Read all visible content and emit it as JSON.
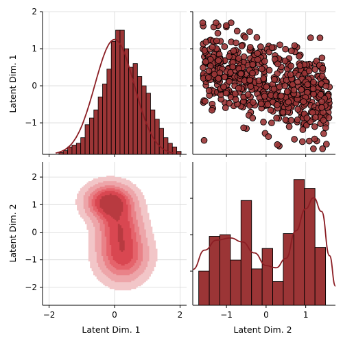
{
  "colors": {
    "bar": "#9b3536",
    "edge": "#000000",
    "kde_line": "#8b1e24",
    "kde_fill": [
      "#f2c6c8",
      "#eda5a9",
      "#e98288",
      "#e5636b",
      "#d94751",
      "#b83a40"
    ]
  },
  "chart_data": [
    {
      "panel": "top-left",
      "type": "bar",
      "ylabel": "Latent Dim. 1",
      "xlim": [
        -2.2,
        2.2
      ],
      "ylim": [
        -1.85,
        2.0
      ],
      "yticks": [
        -1,
        0,
        1,
        2
      ],
      "ytick_labels": [
        "−1",
        "0",
        "1",
        "2"
      ],
      "xticks": [
        -2,
        0,
        2
      ],
      "bins_start": -1.7,
      "bin_width": 0.1333,
      "counts": [
        0.05,
        0.1,
        0.2,
        0.25,
        0.3,
        0.45,
        0.8,
        0.98,
        1.2,
        1.55,
        1.9,
        2.3,
        3.05,
        3.35,
        3.35,
        2.85,
        2.35,
        2.45,
        2.1,
        1.85,
        1.65,
        1.2,
        0.95,
        0.7,
        0.45,
        0.3,
        0.2,
        0.08
      ],
      "kde": {
        "mean": 0.0,
        "sd": 0.6,
        "peak": 3.1
      }
    },
    {
      "panel": "top-right",
      "type": "scatter",
      "xlim": [
        -1.85,
        1.75
      ],
      "ylim": [
        -1.85,
        2.0
      ],
      "xticks": [
        -1,
        0,
        1
      ],
      "yticks": [
        -1,
        0,
        1,
        2
      ],
      "n_points": 600
    },
    {
      "panel": "bottom-left",
      "type": "heatmap",
      "xlabel": "Latent Dim. 1",
      "ylabel": "Latent Dim. 2",
      "xlim": [
        -2.2,
        2.2
      ],
      "ylim": [
        -2.65,
        2.55
      ],
      "xticks": [
        -2,
        0,
        2
      ],
      "xtick_labels": [
        "−2",
        "0",
        "2"
      ],
      "yticks": [
        -2,
        -1,
        0,
        1,
        2
      ],
      "ytick_labels": [
        "−2",
        "−1",
        "0",
        "1",
        "2"
      ],
      "components": [
        {
          "x": -0.15,
          "y": 1.1,
          "sx": 0.42,
          "sy": 0.38,
          "w": 1.0
        },
        {
          "x": 0.15,
          "y": 0.2,
          "sx": 0.4,
          "sy": 0.5,
          "w": 0.65
        },
        {
          "x": 0.25,
          "y": -0.85,
          "sx": 0.45,
          "sy": 0.55,
          "w": 0.7
        }
      ],
      "levels": [
        0.05,
        0.15,
        0.3,
        0.45,
        0.6,
        0.8
      ]
    },
    {
      "panel": "bottom-right",
      "type": "bar",
      "xlabel": "Latent Dim. 2",
      "xlim": [
        -1.85,
        1.75
      ],
      "xticks": [
        -1,
        0,
        1
      ],
      "xtick_labels": [
        "−1",
        "0",
        "1"
      ],
      "bins_start": -1.7,
      "bin_width": 0.2667,
      "counts": [
        0.62,
        1.25,
        1.28,
        0.82,
        1.9,
        0.66,
        1.03,
        0.43,
        1.3,
        2.28,
        2.12,
        1.05
      ],
      "count_max": 2.6,
      "kde": [
        {
          "x": -1.85,
          "y": 0.65
        },
        {
          "x": -1.55,
          "y": 1.0
        },
        {
          "x": -1.25,
          "y": 1.18
        },
        {
          "x": -0.9,
          "y": 1.22
        },
        {
          "x": -0.6,
          "y": 1.15
        },
        {
          "x": -0.3,
          "y": 0.95
        },
        {
          "x": 0.0,
          "y": 0.72
        },
        {
          "x": 0.25,
          "y": 0.68
        },
        {
          "x": 0.5,
          "y": 0.85
        },
        {
          "x": 0.75,
          "y": 1.35
        },
        {
          "x": 1.0,
          "y": 1.75
        },
        {
          "x": 1.2,
          "y": 1.95
        },
        {
          "x": 1.4,
          "y": 1.7
        },
        {
          "x": 1.6,
          "y": 0.9
        },
        {
          "x": 1.75,
          "y": 0.35
        }
      ]
    }
  ]
}
